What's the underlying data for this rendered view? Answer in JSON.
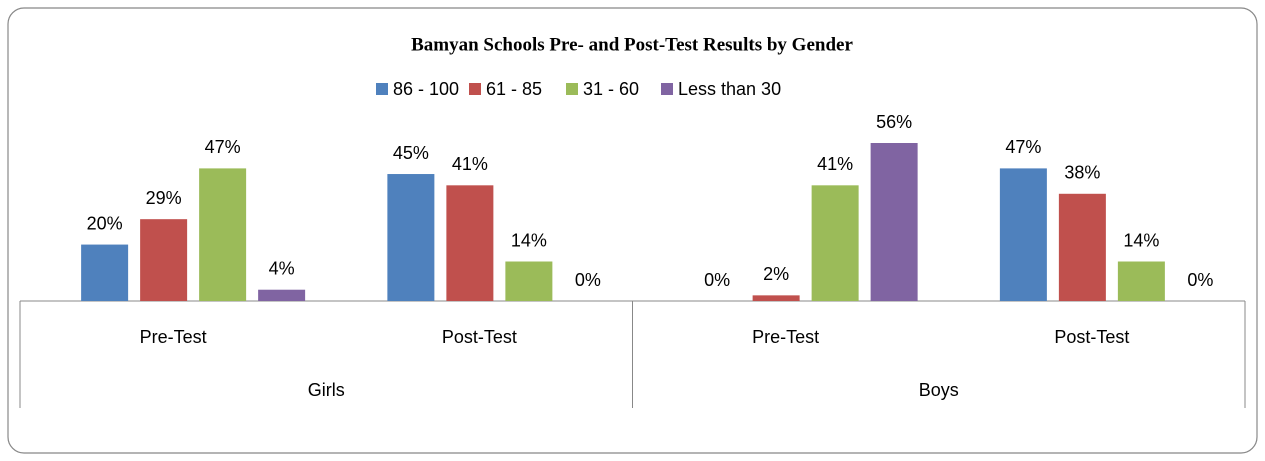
{
  "chart_data": {
    "type": "bar",
    "title": "Bamyan Schools Pre- and Post-Test Results by Gender",
    "categories": [
      "Pre-Test",
      "Post-Test",
      "Pre-Test",
      "Post-Test"
    ],
    "groups": [
      "Girls",
      "Boys"
    ],
    "series": [
      {
        "name": "86 - 100",
        "color": "#4f81bd",
        "values": [
          20,
          45,
          0,
          47
        ],
        "value_labels": [
          "20%",
          "45%",
          "0%",
          "47%"
        ]
      },
      {
        "name": "61 - 85",
        "color": "#c0504d",
        "values": [
          29,
          41,
          2,
          38
        ],
        "value_labels": [
          "29%",
          "41%",
          "2%",
          "38%"
        ]
      },
      {
        "name": "31 - 60",
        "color": "#9bbb59",
        "values": [
          47,
          14,
          41,
          14
        ],
        "value_labels": [
          "47%",
          "14%",
          "41%",
          "14%"
        ]
      },
      {
        "name": "Less than 30",
        "color": "#8064a2",
        "values": [
          4,
          0,
          56,
          0
        ],
        "value_labels": [
          "4%",
          "0%",
          "56%",
          "0%"
        ]
      }
    ],
    "legend": "top"
  }
}
